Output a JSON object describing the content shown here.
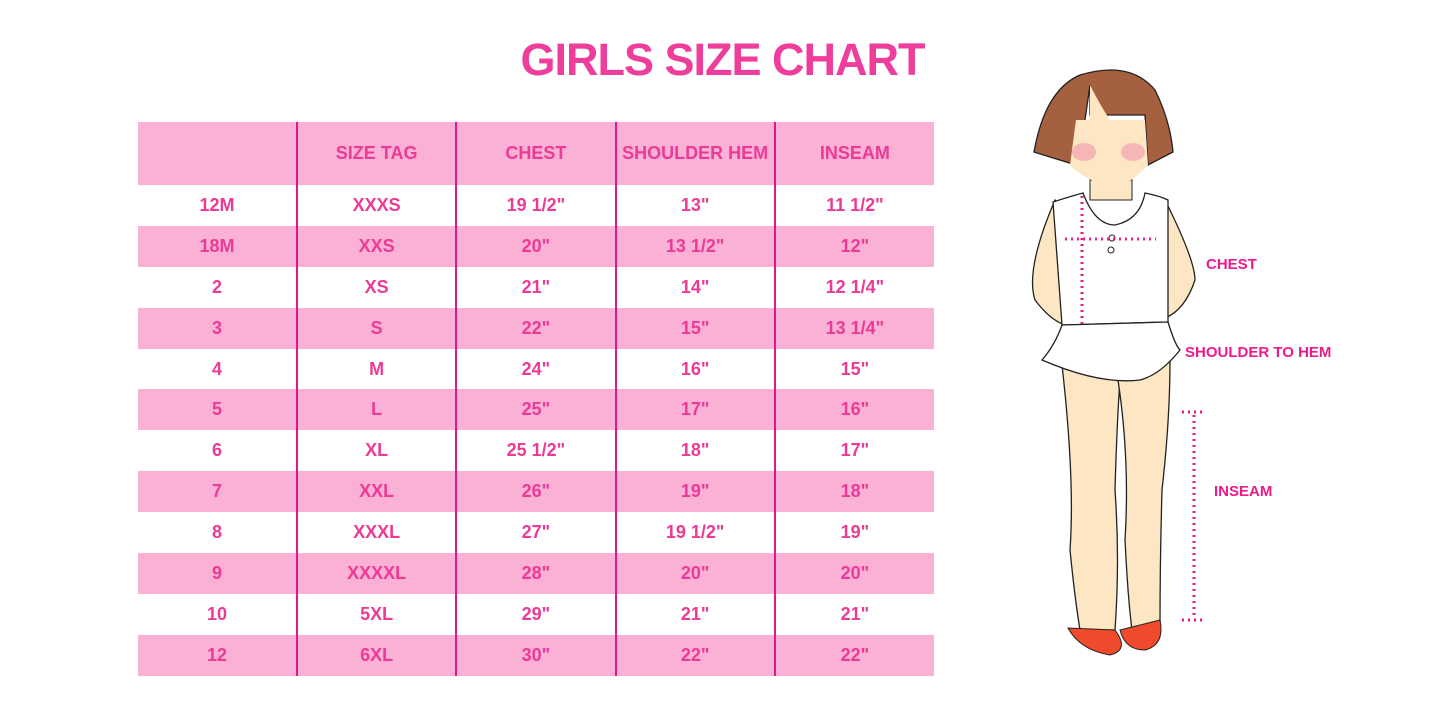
{
  "title": "GIRLS SIZE CHART",
  "table": {
    "headers": [
      "",
      "SIZE TAG",
      "CHEST",
      "SHOULDER HEM",
      "INSEAM"
    ],
    "rows": [
      [
        "12M",
        "XXXS",
        "19 1/2\"",
        "13\"",
        "11 1/2\""
      ],
      [
        "18M",
        "XXS",
        "20\"",
        "13 1/2\"",
        "12\""
      ],
      [
        "2",
        "XS",
        "21\"",
        "14\"",
        "12 1/4\""
      ],
      [
        "3",
        "S",
        "22\"",
        "15\"",
        "13 1/4\""
      ],
      [
        "4",
        "M",
        "24\"",
        "16\"",
        "15\""
      ],
      [
        "5",
        "L",
        "25\"",
        "17\"",
        "16\""
      ],
      [
        "6",
        "XL",
        "25 1/2\"",
        "18\"",
        "17\""
      ],
      [
        "7",
        "XXL",
        "26\"",
        "19\"",
        "18\""
      ],
      [
        "8",
        "XXXL",
        "27\"",
        "19 1/2\"",
        "19\""
      ],
      [
        "9",
        "XXXXL",
        "28\"",
        "20\"",
        "20\""
      ],
      [
        "10",
        "5XL",
        "29\"",
        "21\"",
        "21\""
      ],
      [
        "12",
        "6XL",
        "30\"",
        "22\"",
        "22\""
      ]
    ]
  },
  "illustration": {
    "labels": {
      "chest": "CHEST",
      "shoulder_to_hem": "SHOULDER TO HEM",
      "inseam": "INSEAM"
    }
  },
  "colors": {
    "accent": "#ee3d9b",
    "row_pink": "#fbb0d6",
    "divider": "#e4168c"
  }
}
